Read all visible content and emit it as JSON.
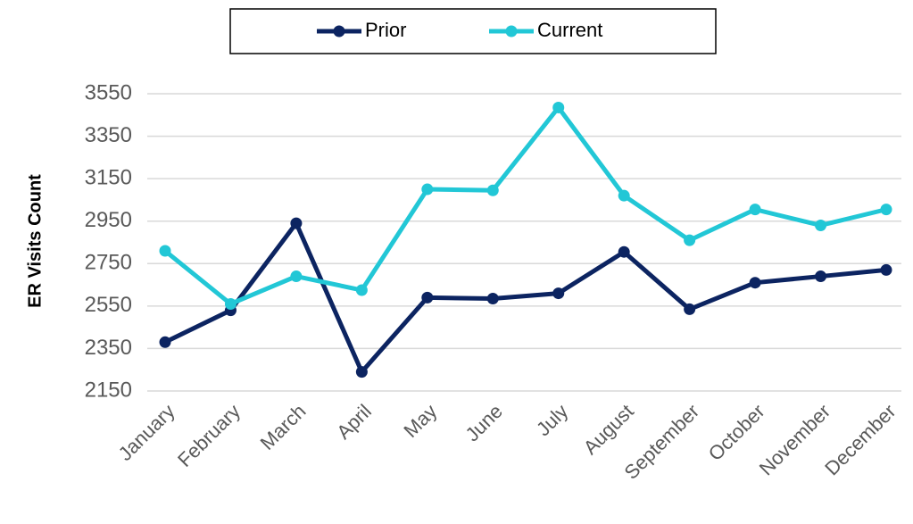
{
  "chart_data": {
    "type": "line",
    "y_label": "ER Visits Count",
    "categories": [
      "January",
      "February",
      "March",
      "April",
      "May",
      "June",
      "July",
      "August",
      "September",
      "October",
      "November",
      "December"
    ],
    "series": [
      {
        "name": "Prior",
        "color": "#0c2461",
        "values": [
          2380,
          2530,
          2940,
          2240,
          2590,
          2585,
          2610,
          2805,
          2535,
          2660,
          2690,
          2720
        ]
      },
      {
        "name": "Current",
        "color": "#22c7d6",
        "values": [
          2810,
          2560,
          2690,
          2625,
          3100,
          3095,
          3485,
          3070,
          2860,
          3005,
          2930,
          3005
        ]
      }
    ],
    "ylim": [
      2150,
      3550
    ],
    "yticks": [
      2150,
      2350,
      2550,
      2750,
      2950,
      3150,
      3350,
      3550
    ],
    "grid": true,
    "legend": "top"
  }
}
